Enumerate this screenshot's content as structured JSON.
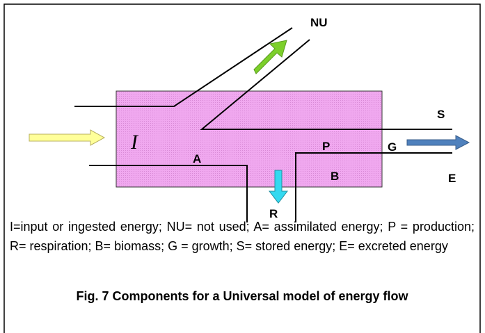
{
  "labels": {
    "nu": "NU",
    "i": "I",
    "a": "A",
    "p": "P",
    "g": "G",
    "b": "B",
    "s": "S",
    "e": "E",
    "r": "R"
  },
  "caption": "I=input or ingested energy; NU= not used; A= assimilated energy; P = production; R= respiration; B= biomass; G = growth; S= stored energy; E= excreted energy",
  "figure_title": "Fig. 7 Components for a Universal model of energy flow"
}
